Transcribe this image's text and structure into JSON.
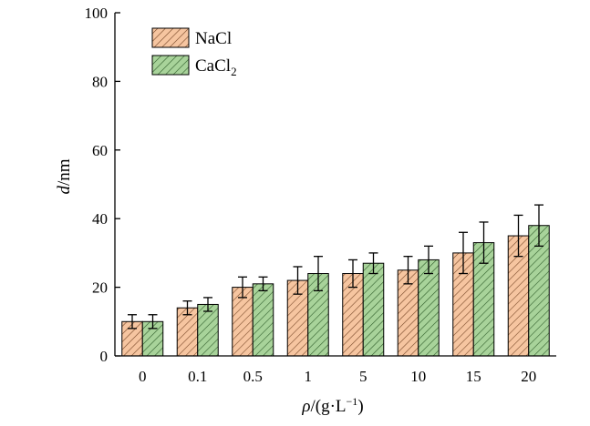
{
  "colors": {
    "nacl_fill": "#f6c5a0",
    "nacl_hatch": "#7a4a2a",
    "cacl2_fill": "#a8d39a",
    "cacl2_hatch": "#2f5d2a",
    "axis": "#000000",
    "error_bar": "#000000"
  },
  "chart_data": {
    "type": "bar",
    "categories": [
      "0",
      "0.1",
      "0.5",
      "1",
      "5",
      "10",
      "15",
      "20"
    ],
    "series": [
      {
        "name": "NaCl",
        "name_sub": "",
        "values": [
          10,
          14,
          20,
          22,
          24,
          25,
          30,
          35
        ],
        "errors": [
          2,
          2,
          3,
          4,
          4,
          4,
          6,
          6
        ]
      },
      {
        "name": "CaCl",
        "name_sub": "2",
        "values": [
          10,
          15,
          21,
          24,
          27,
          28,
          33,
          38
        ],
        "errors": [
          2,
          2,
          2,
          5,
          3,
          4,
          6,
          6
        ]
      }
    ],
    "xlabel": {
      "italic": "ρ",
      "rest": "/(g·L",
      "sup": "−1",
      "close": ")"
    },
    "ylabel": {
      "italic": "d",
      "rest": "/nm"
    },
    "ylim": [
      0,
      100
    ],
    "yticks": [
      0,
      20,
      40,
      60,
      80,
      100
    ],
    "legend_position": "top-left",
    "grid": false
  }
}
